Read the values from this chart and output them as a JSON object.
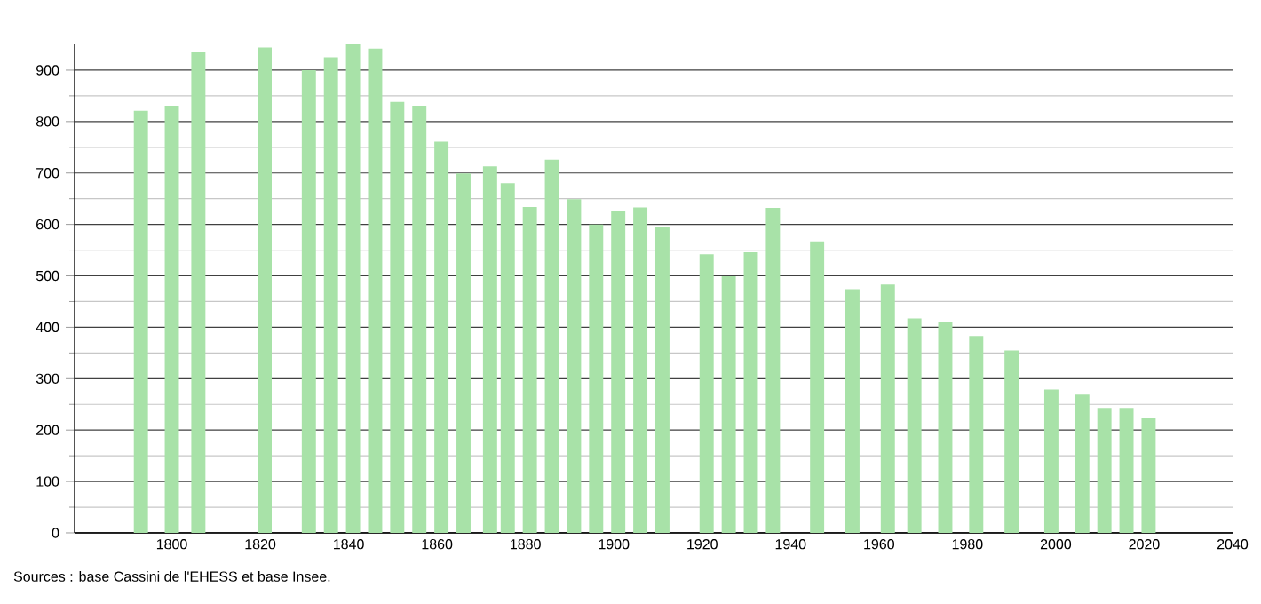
{
  "chart_data": {
    "type": "bar",
    "x": [
      1793,
      1800,
      1806,
      1821,
      1831,
      1836,
      1841,
      1846,
      1851,
      1856,
      1861,
      1866,
      1872,
      1876,
      1881,
      1886,
      1891,
      1896,
      1901,
      1906,
      1911,
      1921,
      1926,
      1931,
      1936,
      1946,
      1954,
      1962,
      1968,
      1975,
      1982,
      1990,
      1999,
      2006,
      2011,
      2016,
      2021
    ],
    "values": [
      821,
      831,
      936,
      944,
      900,
      925,
      950,
      942,
      838,
      831,
      761,
      699,
      713,
      680,
      634,
      726,
      649,
      600,
      627,
      633,
      595,
      542,
      499,
      546,
      632,
      567,
      474,
      483,
      417,
      411,
      383,
      355,
      279,
      269,
      243,
      243,
      223
    ],
    "color": "#a8e2a8",
    "xlim": [
      1778,
      2040
    ],
    "xticks": [
      1800,
      1820,
      1840,
      1860,
      1880,
      1900,
      1920,
      1940,
      1960,
      1980,
      2000,
      2020,
      2040
    ],
    "ylim": [
      0,
      950
    ],
    "yticks": [
      0,
      100,
      200,
      300,
      400,
      500,
      600,
      700,
      800,
      900
    ],
    "grid": "y",
    "annotations": [
      "Sources : base Cassini de l'EHESS et base Insee."
    ]
  }
}
